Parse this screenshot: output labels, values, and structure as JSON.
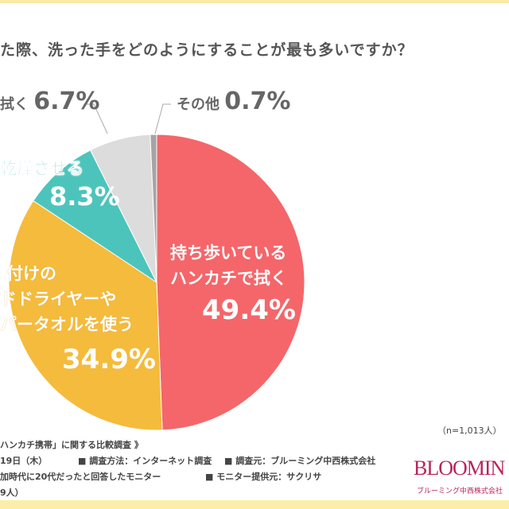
{
  "title": "た際、洗った手をどのようにすることが最も多いですか？",
  "chart_data": {
    "type": "pie",
    "title": "た際、洗った手をどのようにすることが最も多いですか？",
    "slices": [
      {
        "label_lines": [
          "持ち歩いている",
          "ハンカチで拭く"
        ],
        "value": 49.4,
        "value_label": "49.4%",
        "color": "#f4666a"
      },
      {
        "label_lines": [
          "付けの",
          "ドドライヤーや",
          "パータオルを使う"
        ],
        "value": 34.9,
        "value_label": "34.9%",
        "color": "#f5bb3c"
      },
      {
        "label_lines": [
          "乾燥させる"
        ],
        "value": 8.3,
        "value_label": "8.3%",
        "color": "#4cc4bc"
      },
      {
        "label_lines": [
          "拭く"
        ],
        "value": 6.7,
        "value_label": "6.7%",
        "color": "#dcdcdc"
      },
      {
        "label_lines": [
          "その他"
        ],
        "value": 0.7,
        "value_label": "0.7%",
        "color": "#a5a5a5"
      }
    ],
    "sample": "（n=1,013人）"
  },
  "footer": {
    "lines": [
      "ハンカチ携帯」に関する比較調査 》",
      "19日（木）",
      "加時代に20代だったと回答したモニター",
      "9人）"
    ],
    "method": "■ 調査方法：インターネット調査",
    "source": "■ 調査元：ブルーミング中西株式会社",
    "provider": "■ モニター提供元：サクリサ"
  },
  "logo": {
    "text": "BLOOMIN",
    "sub": "ブルーミング中西株式会社"
  }
}
